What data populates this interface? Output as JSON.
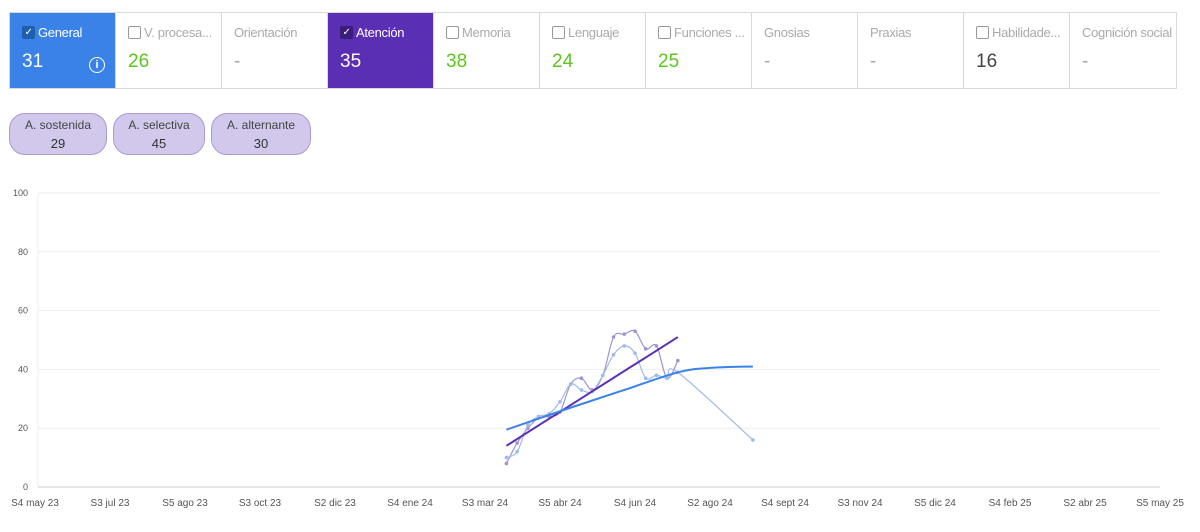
{
  "tabs": [
    {
      "label": "General",
      "value": "31",
      "checkbox": true,
      "checked": true,
      "style": "general",
      "info": true
    },
    {
      "label": "V. procesa...",
      "value": "26",
      "checkbox": true,
      "checked": false
    },
    {
      "label": "Orientación",
      "value": "-",
      "checkbox": false
    },
    {
      "label": "Atención",
      "value": "35",
      "checkbox": true,
      "checked": true,
      "style": "atencion"
    },
    {
      "label": "Memoria",
      "value": "38",
      "checkbox": true,
      "checked": false
    },
    {
      "label": "Lenguaje",
      "value": "24",
      "checkbox": true,
      "checked": false
    },
    {
      "label": "Funciones ...",
      "value": "25",
      "checkbox": true,
      "checked": false
    },
    {
      "label": "Gnosias",
      "value": "-",
      "checkbox": false
    },
    {
      "label": "Praxias",
      "value": "-",
      "checkbox": false
    },
    {
      "label": "Habilidade...",
      "value": "16",
      "checkbox": true,
      "checked": false,
      "dark": true
    },
    {
      "label": "Cognición social",
      "value": "-",
      "checkbox": false
    }
  ],
  "subscores": [
    {
      "label": "A. sostenida",
      "value": "29"
    },
    {
      "label": "A. selectiva",
      "value": "45"
    },
    {
      "label": "A. alternante",
      "value": "30"
    }
  ],
  "colors": {
    "general": "#3a82e8",
    "atencion": "#5b2fb3",
    "good": "#5cc61e"
  },
  "chart_data": {
    "type": "line",
    "ylim": [
      0,
      100
    ],
    "yticks": [
      0,
      20,
      40,
      60,
      80,
      100
    ],
    "grid": true,
    "xticks": [
      "S4 may 23",
      "S3 jul 23",
      "S5 ago 23",
      "S3 oct 23",
      "S2 dic 23",
      "S4 ene 24",
      "S3 mar 24",
      "S5 abr 24",
      "S4 jun 24",
      "S2 ago 24",
      "S4 sept 24",
      "S3 nov 24",
      "S5 dic 24",
      "S4 feb 25",
      "S2 abr 25",
      "S5 may 25"
    ],
    "xrange": [
      "2023-05-22",
      "2025-05-26"
    ],
    "series": [
      {
        "color": "#9f94cf",
        "trend_color": "#5b2fb3",
        "x": [
          "2024-03-25",
          "2024-04-01",
          "2024-04-08",
          "2024-04-15",
          "2024-04-22",
          "2024-04-29",
          "2024-05-06",
          "2024-05-13",
          "2024-05-20",
          "2024-05-27",
          "2024-06-03",
          "2024-06-10",
          "2024-06-17",
          "2024-06-24",
          "2024-07-01",
          "2024-07-08",
          "2024-07-15"
        ],
        "y": [
          8,
          15,
          20,
          23.5,
          24,
          25.5,
          35,
          37,
          33,
          38,
          51,
          52,
          53,
          47,
          48,
          37,
          43
        ],
        "trend": {
          "x": [
            "2024-03-25",
            "2024-07-15"
          ],
          "y": [
            14,
            51
          ]
        }
      },
      {
        "color": "#9dbbec",
        "trend_color": "#3a82e8",
        "x": [
          "2024-03-25",
          "2024-04-01",
          "2024-04-08",
          "2024-04-15",
          "2024-04-22",
          "2024-04-29",
          "2024-05-06",
          "2024-05-13",
          "2024-05-20",
          "2024-05-27",
          "2024-06-03",
          "2024-06-10",
          "2024-06-17",
          "2024-06-24",
          "2024-07-01",
          "2024-07-08",
          "2024-07-15",
          "2024-09-02"
        ],
        "y": [
          10,
          12,
          21,
          24,
          25,
          29,
          35,
          33,
          32.5,
          38,
          45,
          48,
          45.5,
          37,
          38,
          37,
          39,
          16
        ],
        "trend": {
          "x": [
            "2024-03-25",
            "2024-05-06",
            "2024-06-10",
            "2024-07-15",
            "2024-08-05",
            "2024-09-02"
          ],
          "y": [
            19.5,
            27,
            33,
            39,
            40.5,
            41
          ]
        }
      }
    ]
  }
}
